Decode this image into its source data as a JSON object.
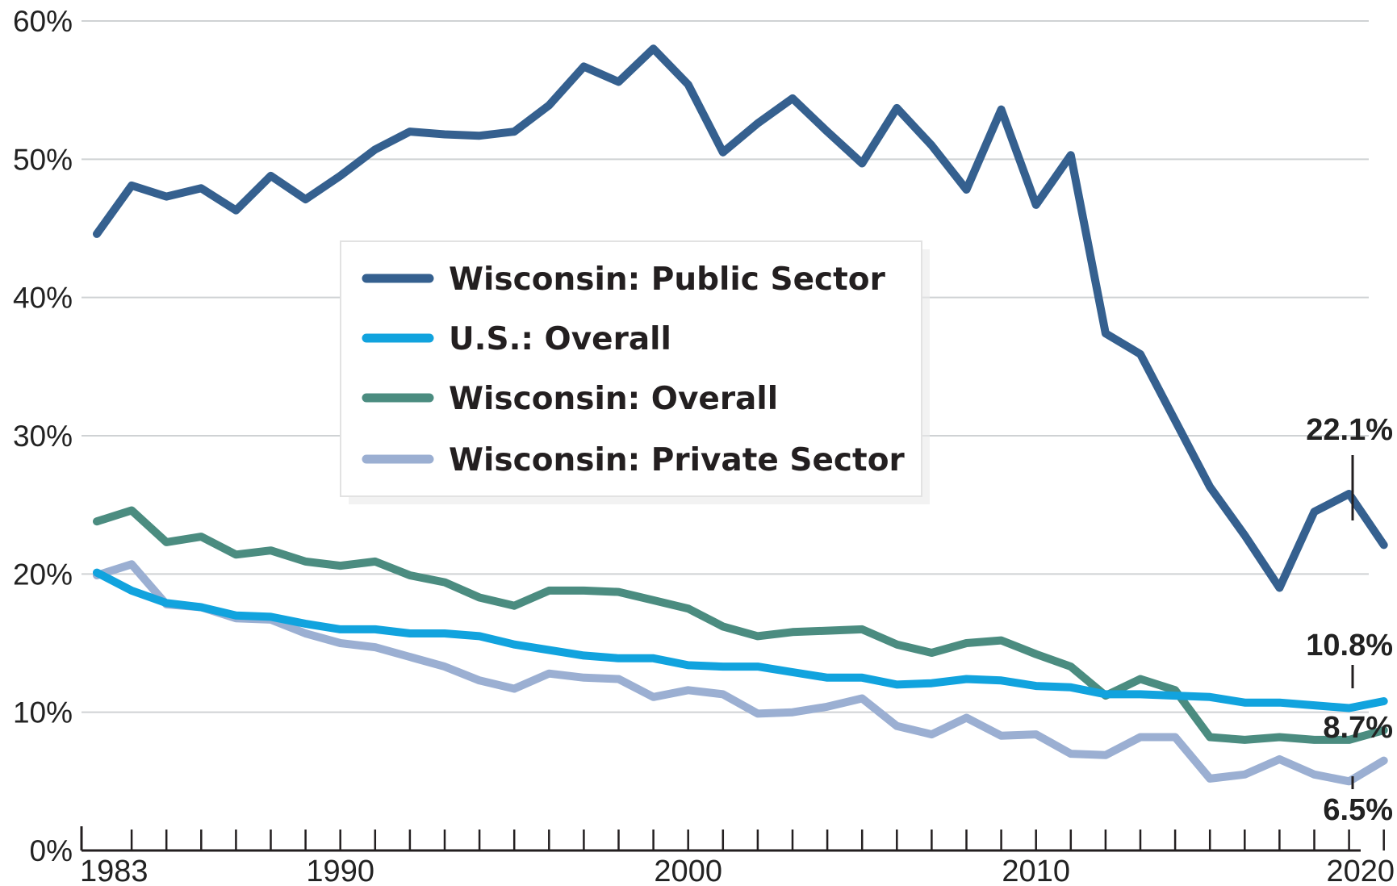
{
  "chart_data": {
    "type": "line",
    "title": "",
    "xlabel": "",
    "ylabel": "",
    "xlim": [
      1983,
      2020
    ],
    "ylim": [
      0,
      60
    ],
    "y_ticks": [
      0,
      10,
      20,
      30,
      40,
      50,
      60
    ],
    "y_tick_labels": [
      "0%",
      "10%",
      "20%",
      "30%",
      "40%",
      "50%",
      "60%"
    ],
    "x_tick_labels": [
      {
        "year": 1983,
        "label": "1983"
      },
      {
        "year": 1990,
        "label": "1990"
      },
      {
        "year": 2000,
        "label": "2000"
      },
      {
        "year": 2010,
        "label": "2010"
      },
      {
        "year": 2020,
        "label": "2020"
      }
    ],
    "grid": "horizontal",
    "legend_position": "center-left",
    "x": [
      1983,
      1984,
      1985,
      1986,
      1987,
      1988,
      1989,
      1990,
      1991,
      1992,
      1993,
      1994,
      1995,
      1996,
      1997,
      1998,
      1999,
      2000,
      2001,
      2002,
      2003,
      2004,
      2005,
      2006,
      2007,
      2008,
      2009,
      2010,
      2011,
      2012,
      2013,
      2014,
      2015,
      2016,
      2017,
      2018,
      2019,
      2020,
      2021
    ],
    "series": [
      {
        "name": "Wisconsin: Public Sector",
        "color": "#35608f",
        "values": [
          44.6,
          48.1,
          47.3,
          47.9,
          46.3,
          48.8,
          47.1,
          48.8,
          50.7,
          52.0,
          51.8,
          51.7,
          52.0,
          53.9,
          56.7,
          55.6,
          58.0,
          55.4,
          50.5,
          52.6,
          54.4,
          52.0,
          49.7,
          53.7,
          51.0,
          47.8,
          53.6,
          46.7,
          50.3,
          37.4,
          35.9,
          31.1,
          26.3,
          22.8,
          19.0,
          24.5,
          25.8,
          22.1,
          null
        ],
        "end_label": "22.1%"
      },
      {
        "name": "U.S.: Overall",
        "color": "#11a3de",
        "values": [
          20.1,
          18.8,
          17.9,
          17.6,
          17.0,
          16.9,
          16.4,
          16.0,
          16.0,
          15.7,
          15.7,
          15.5,
          14.9,
          14.5,
          14.1,
          13.9,
          13.9,
          13.4,
          13.3,
          13.3,
          12.9,
          12.5,
          12.5,
          12.0,
          12.1,
          12.4,
          12.3,
          11.9,
          11.8,
          11.3,
          11.3,
          11.2,
          11.1,
          10.7,
          10.7,
          10.5,
          10.3,
          10.8,
          null
        ],
        "end_label": "10.8%"
      },
      {
        "name": "Wisconsin: Overall",
        "color": "#4b8c80",
        "values": [
          23.8,
          24.6,
          22.3,
          22.7,
          21.4,
          21.7,
          20.9,
          20.6,
          20.9,
          19.9,
          19.4,
          18.3,
          17.7,
          18.8,
          18.8,
          18.7,
          18.1,
          17.5,
          16.2,
          15.5,
          15.8,
          15.9,
          16.0,
          14.9,
          14.3,
          15.0,
          15.2,
          14.2,
          13.3,
          11.2,
          12.4,
          11.6,
          8.2,
          8.0,
          8.2,
          8.0,
          8.0,
          8.7,
          null
        ],
        "end_label": "8.7%"
      },
      {
        "name": "Wisconsin: Private Sector",
        "color": "#9bafd2",
        "values": [
          19.9,
          20.7,
          17.8,
          17.6,
          16.8,
          16.7,
          15.7,
          15.0,
          14.7,
          14.0,
          13.3,
          12.3,
          11.7,
          12.8,
          12.5,
          12.4,
          11.1,
          11.6,
          11.3,
          9.9,
          10.0,
          10.4,
          11.0,
          9.0,
          8.4,
          9.6,
          8.3,
          8.4,
          7.0,
          6.9,
          8.2,
          8.2,
          5.2,
          5.5,
          6.6,
          5.5,
          5.0,
          6.5,
          null
        ],
        "end_label": "6.5%"
      }
    ]
  }
}
